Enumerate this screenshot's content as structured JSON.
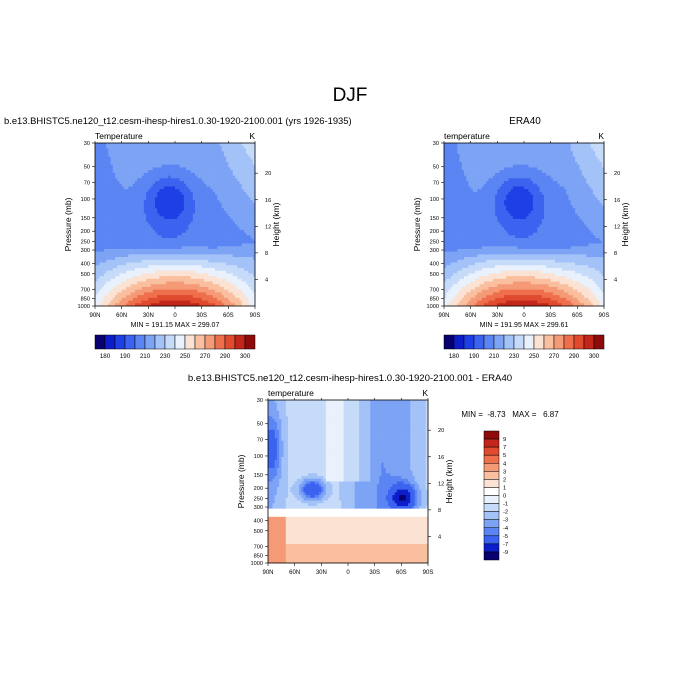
{
  "page": {
    "main_title": "DJF",
    "bottom_title": "b.e13.BHISTC5.ne120_t12.cesm-ihesp-hires1.0.30-1920-2100.001 - ERA40"
  },
  "chart_data": [
    {
      "type": "heatmap",
      "id": "model",
      "header": "b.e13.BHISTC5.ne120_t12.cesm-ihesp-hires1.0.30-1920-2100.001 (yrs 1926-1935)",
      "left_label": "Temperature",
      "units": "K",
      "ylabel": "Pressure (mb)",
      "y2label": "Height (km)",
      "x_ticks": [
        "90N",
        "60N",
        "30N",
        "0",
        "30S",
        "60S",
        "90S"
      ],
      "p_ticks": [
        "30",
        "50",
        "70",
        "100",
        "150",
        "200",
        "250",
        "300",
        "400",
        "500",
        "700",
        "850",
        "1000"
      ],
      "p_values": [
        30,
        50,
        70,
        100,
        150,
        200,
        250,
        300,
        400,
        500,
        700,
        850,
        1000
      ],
      "z_ticks": [
        "20",
        "16",
        "12",
        "8",
        "4"
      ],
      "z_values": [
        20,
        16,
        12,
        8,
        4
      ],
      "levels": [
        180,
        190,
        200,
        210,
        220,
        230,
        240,
        250,
        260,
        270,
        280,
        290,
        300
      ],
      "min": "191.15",
      "max": "299.07",
      "stats": "MIN = 191.15   MAX = 299.07"
    },
    {
      "type": "heatmap",
      "id": "era40",
      "header": "ERA40",
      "left_label": "temperature",
      "units": "K",
      "ylabel": "Pressure (mb)",
      "y2label": "Height (km)",
      "x_ticks": [
        "90N",
        "60N",
        "30N",
        "0",
        "30S",
        "60S",
        "90S"
      ],
      "p_ticks": [
        "30",
        "50",
        "70",
        "100",
        "150",
        "200",
        "250",
        "300",
        "400",
        "500",
        "700",
        "850",
        "1000"
      ],
      "p_values": [
        30,
        50,
        70,
        100,
        150,
        200,
        250,
        300,
        400,
        500,
        700,
        850,
        1000
      ],
      "z_ticks": [
        "20",
        "16",
        "12",
        "8",
        "4"
      ],
      "z_values": [
        20,
        16,
        12,
        8,
        4
      ],
      "levels": [
        180,
        190,
        200,
        210,
        220,
        230,
        240,
        250,
        260,
        270,
        280,
        290,
        300
      ],
      "min": "191.95",
      "max": "299.61",
      "stats": "MIN = 191.95   MAX = 299.61"
    },
    {
      "type": "heatmap",
      "id": "diff",
      "header": "",
      "left_label": "temperature",
      "units": "K",
      "ylabel": "Pressure (mb)",
      "y2label": "Height (km)",
      "x_ticks": [
        "90N",
        "60N",
        "30N",
        "0",
        "30S",
        "60S",
        "90S"
      ],
      "p_ticks": [
        "30",
        "50",
        "70",
        "100",
        "150",
        "200",
        "250",
        "300",
        "400",
        "500",
        "700",
        "850",
        "1000"
      ],
      "p_values": [
        30,
        50,
        70,
        100,
        150,
        200,
        250,
        300,
        400,
        500,
        700,
        850,
        1000
      ],
      "z_ticks": [
        "20",
        "16",
        "12",
        "8",
        "4"
      ],
      "z_values": [
        20,
        16,
        12,
        8,
        4
      ],
      "levels": [
        -9,
        -7,
        -5,
        -4,
        -3,
        -2,
        -1,
        0,
        1,
        2,
        3,
        4,
        5,
        7,
        9
      ],
      "min": "-8.73",
      "max": "6.87",
      "stats": "MIN =  -8.73   MAX =   6.87"
    }
  ],
  "colorbars": {
    "abs": {
      "labels": [
        "180",
        "190",
        "210",
        "230",
        "250",
        "270",
        "290",
        "300"
      ],
      "colors": [
        "#08006e",
        "#0d1dc9",
        "#1e3fe6",
        "#3b63f0",
        "#5a85f3",
        "#7da3f5",
        "#a3c2f8",
        "#c6dbfa",
        "#e8f1fc",
        "#fbe2d3",
        "#f9bf9f",
        "#f59a76",
        "#ef6f4d",
        "#e04a2f",
        "#c2261b",
        "#8f0b0b"
      ]
    },
    "diff": {
      "labels": [
        "9",
        "7",
        "5",
        "4",
        "3",
        "2",
        "1",
        "0",
        "-1",
        "-2",
        "-3",
        "-4",
        "-5",
        "-7",
        "-9"
      ],
      "colors": [
        "#8f0b0b",
        "#c2261b",
        "#e04a2f",
        "#ef6f4d",
        "#f59a76",
        "#f9bf9f",
        "#fbe2d3",
        "#ffffff",
        "#e8f1fc",
        "#c6dbfa",
        "#a3c2f8",
        "#7da3f5",
        "#5a85f3",
        "#3b63f0",
        "#0d1dc9",
        "#08006e"
      ]
    }
  }
}
